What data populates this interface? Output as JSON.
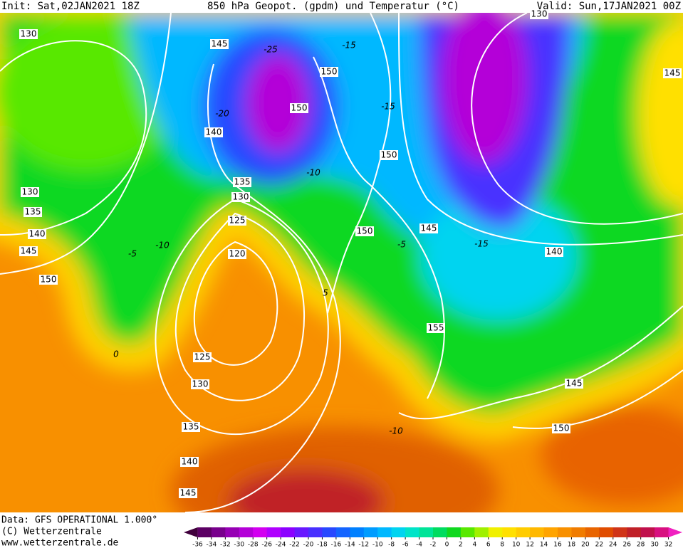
{
  "header": {
    "init": "Init: Sat,02JAN2021 18Z",
    "title": "850 hPa Geopot. (gpdm) und Temperatur (°C)",
    "valid": "Valid: Sun,17JAN2021 00Z"
  },
  "footer": {
    "data_source": "Data: GFS OPERATIONAL 1.000°",
    "copyright": "(C) Wetterzentrale",
    "website": "www.wetterzentrale.de"
  },
  "colorbar": {
    "ticks": [
      -36,
      -34,
      -32,
      -30,
      -28,
      -26,
      -24,
      -22,
      -20,
      -18,
      -16,
      -14,
      -12,
      -10,
      -8,
      -6,
      -4,
      -2,
      0,
      2,
      4,
      6,
      8,
      10,
      12,
      14,
      16,
      18,
      20,
      22,
      24,
      26,
      28,
      30,
      32
    ],
    "colors": [
      "#40003c",
      "#5c0064",
      "#78008c",
      "#9600b4",
      "#b400d8",
      "#d200f0",
      "#b000ff",
      "#8c00ff",
      "#6818ff",
      "#4830ff",
      "#2848ff",
      "#1464ff",
      "#0080ff",
      "#009cff",
      "#00b8ff",
      "#00d4f0",
      "#00e4c8",
      "#00e498",
      "#00dc60",
      "#10d820",
      "#58e800",
      "#a0f000",
      "#f0f000",
      "#ffe000",
      "#ffcc00",
      "#ffb800",
      "#ffa400",
      "#f89000",
      "#f07c00",
      "#e86400",
      "#e04c00",
      "#d03418",
      "#c02028",
      "#c0104c",
      "#d81080",
      "#f020c0"
    ]
  },
  "contour_labels": [
    "130",
    "145",
    "150",
    "150",
    "140",
    "150",
    "135",
    "130",
    "125",
    "120",
    "130",
    "135",
    "140",
    "145",
    "150",
    "150",
    "145",
    "140",
    "155",
    "125",
    "130",
    "135",
    "140",
    "145",
    "145",
    "150",
    "130",
    "145"
  ],
  "isotherm_labels": [
    "-25",
    "-15",
    "-20",
    "-15",
    "-10",
    "-10",
    "-5",
    "5",
    "0",
    "-10",
    "-5",
    "-15"
  ]
}
